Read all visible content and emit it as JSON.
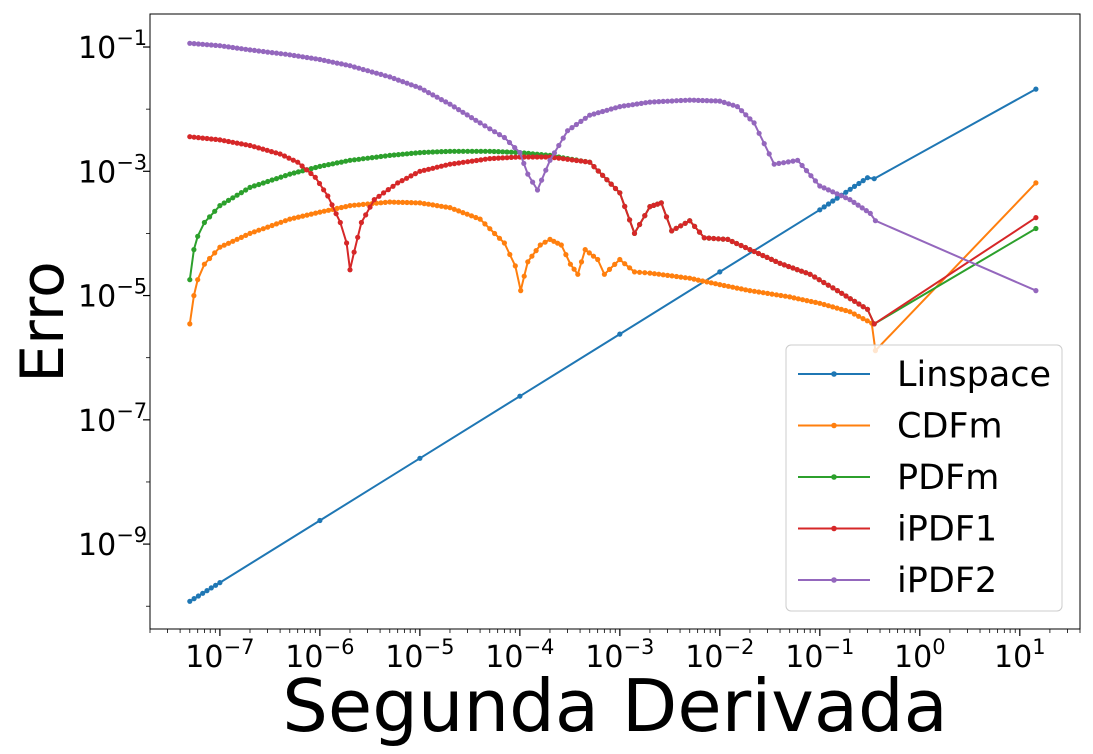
{
  "chart_data": {
    "type": "line",
    "xlabel": "Segunda Derivada",
    "ylabel": "Erro",
    "xscale": "log",
    "yscale": "log",
    "xlim": [
      2e-08,
      40
    ],
    "ylim": [
      4.3e-11,
      0.34
    ],
    "x_major_ticks": [
      1e-07,
      1e-06,
      1e-05,
      0.0001,
      0.001,
      0.01,
      0.1,
      1,
      10
    ],
    "x_tick_labels": [
      {
        "base": "10",
        "exp": "−7"
      },
      {
        "base": "10",
        "exp": "−6"
      },
      {
        "base": "10",
        "exp": "−5"
      },
      {
        "base": "10",
        "exp": "−4"
      },
      {
        "base": "10",
        "exp": "−3"
      },
      {
        "base": "10",
        "exp": "−2"
      },
      {
        "base": "10",
        "exp": "−1"
      },
      {
        "base": "10",
        "exp": "0"
      },
      {
        "base": "10",
        "exp": "1"
      }
    ],
    "y_major_ticks": [
      1e-09,
      1e-07,
      1e-05,
      0.001,
      0.1
    ],
    "y_tick_labels": [
      {
        "base": "10",
        "exp": "−9"
      },
      {
        "base": "10",
        "exp": "−7"
      },
      {
        "base": "10",
        "exp": "−5"
      },
      {
        "base": "10",
        "exp": "−3"
      },
      {
        "base": "10",
        "exp": "−1"
      }
    ],
    "grid": false,
    "legend_position": "lower-right",
    "series": [
      {
        "name": "Linspace",
        "color": "#1f77b4",
        "points": [
          [
            5e-08,
            1.2e-10
          ],
          [
            1e-07,
            2.4e-10
          ],
          [
            1e-06,
            2.4e-09
          ],
          [
            1e-05,
            2.4e-08
          ],
          [
            0.0001,
            2.4e-07
          ],
          [
            0.001,
            2.4e-06
          ],
          [
            0.01,
            2.4e-05
          ],
          [
            0.1,
            0.00024
          ],
          [
            0.3,
            0.00079
          ],
          [
            0.35,
            0.00076
          ],
          [
            14.5,
            0.021
          ]
        ]
      },
      {
        "name": "CDFm",
        "color": "#ff7f0e",
        "points": [
          [
            5e-08,
            3.5e-06
          ],
          [
            5.5e-08,
            1e-05
          ],
          [
            6e-08,
            1.8e-05
          ],
          [
            7e-08,
            3.2e-05
          ],
          [
            1e-07,
            6e-05
          ],
          [
            2e-07,
            0.0001
          ],
          [
            5e-07,
            0.00017
          ],
          [
            1e-06,
            0.00022
          ],
          [
            2e-06,
            0.00028
          ],
          [
            5e-06,
            0.00032
          ],
          [
            1e-05,
            0.00031
          ],
          [
            2e-05,
            0.00026
          ],
          [
            4e-05,
            0.00017
          ],
          [
            7e-05,
            7e-05
          ],
          [
            9e-05,
            3e-05
          ],
          [
            0.000102,
            1.2e-05
          ],
          [
            0.00012,
            3.5e-05
          ],
          [
            0.00016,
            6.5e-05
          ],
          [
            0.0002,
            8e-05
          ],
          [
            0.00026,
            6.5e-05
          ],
          [
            0.00032,
            3.2e-05
          ],
          [
            0.00038,
            2.2e-05
          ],
          [
            0.00045,
            5.5e-05
          ],
          [
            0.0006,
            3.8e-05
          ],
          [
            0.0007,
            2.2e-05
          ],
          [
            0.001,
            3.8e-05
          ],
          [
            0.0014,
            2.4e-05
          ],
          [
            0.002,
            2.3e-05
          ],
          [
            0.005,
            1.9e-05
          ],
          [
            0.01,
            1.5e-05
          ],
          [
            0.02,
            1.2e-05
          ],
          [
            0.05,
            9.5e-06
          ],
          [
            0.1,
            7.5e-06
          ],
          [
            0.2,
            5.5e-06
          ],
          [
            0.33,
            3.6e-06
          ],
          [
            0.36,
            1.3e-06
          ],
          [
            14.5,
            0.00065
          ]
        ]
      },
      {
        "name": "PDFm",
        "color": "#2ca02c",
        "points": [
          [
            5e-08,
            1.8e-05
          ],
          [
            5.5e-08,
            5.5e-05
          ],
          [
            6e-08,
            9e-05
          ],
          [
            7e-08,
            0.00015
          ],
          [
            1e-07,
            0.00028
          ],
          [
            2e-07,
            0.00055
          ],
          [
            5e-07,
            0.0009
          ],
          [
            1e-06,
            0.0012
          ],
          [
            2e-06,
            0.0015
          ],
          [
            5e-06,
            0.0018
          ],
          [
            1e-05,
            0.002
          ],
          [
            2e-05,
            0.0021
          ],
          [
            5e-05,
            0.0021
          ],
          [
            0.0001,
            0.002
          ],
          [
            0.0002,
            0.0018
          ],
          [
            0.0003,
            0.0016
          ],
          [
            0.0005,
            0.0014
          ],
          [
            0.001,
            0.00045
          ],
          [
            0.0014,
            0.0001
          ],
          [
            0.002,
            0.00027
          ],
          [
            0.0026,
            0.00031
          ],
          [
            0.0033,
            0.00011
          ],
          [
            0.005,
            0.00016
          ],
          [
            0.007,
            8.5e-05
          ],
          [
            0.012,
            8e-05
          ],
          [
            0.02,
            5.5e-05
          ],
          [
            0.04,
            3.3e-05
          ],
          [
            0.08,
            2.2e-05
          ],
          [
            0.15,
            1.2e-05
          ],
          [
            0.3,
            6e-06
          ],
          [
            0.35,
            3.5e-06
          ],
          [
            14.5,
            0.00012
          ]
        ]
      },
      {
        "name": "iPDF1",
        "color": "#d62728",
        "points": [
          [
            5e-08,
            0.0036
          ],
          [
            1e-07,
            0.0032
          ],
          [
            2e-07,
            0.0026
          ],
          [
            4e-07,
            0.0019
          ],
          [
            6e-07,
            0.0014
          ],
          [
            9e-07,
            0.0008
          ],
          [
            1.2e-06,
            0.0004
          ],
          [
            1.6e-06,
            0.00015
          ],
          [
            1.85e-06,
            7e-05
          ],
          [
            2e-06,
            2.6e-05
          ],
          [
            2.2e-06,
            5e-05
          ],
          [
            2.6e-06,
            0.00015
          ],
          [
            3.5e-06,
            0.00035
          ],
          [
            6e-06,
            0.00065
          ],
          [
            1e-05,
            0.001
          ],
          [
            2e-05,
            0.0013
          ],
          [
            5e-05,
            0.0016
          ],
          [
            0.0001,
            0.0017
          ],
          [
            0.0002,
            0.0017
          ],
          [
            0.0005,
            0.0014
          ],
          [
            0.001,
            0.00045
          ],
          [
            0.0014,
            0.0001
          ],
          [
            0.002,
            0.00027
          ],
          [
            0.0026,
            0.00031
          ],
          [
            0.0033,
            0.00011
          ],
          [
            0.005,
            0.00016
          ],
          [
            0.007,
            8.5e-05
          ],
          [
            0.012,
            8e-05
          ],
          [
            0.02,
            5.5e-05
          ],
          [
            0.04,
            3.3e-05
          ],
          [
            0.08,
            2.2e-05
          ],
          [
            0.15,
            1.2e-05
          ],
          [
            0.3,
            6e-06
          ],
          [
            0.35,
            3.5e-06
          ],
          [
            14.5,
            0.00018
          ]
        ]
      },
      {
        "name": "iPDF2",
        "color": "#9467bd",
        "points": [
          [
            5e-08,
            0.115
          ],
          [
            1e-07,
            0.105
          ],
          [
            2e-07,
            0.09
          ],
          [
            5e-07,
            0.075
          ],
          [
            1e-06,
            0.063
          ],
          [
            2e-06,
            0.05
          ],
          [
            5e-06,
            0.033
          ],
          [
            1e-05,
            0.022
          ],
          [
            2e-05,
            0.012
          ],
          [
            4e-05,
            0.006
          ],
          [
            7e-05,
            0.0035
          ],
          [
            0.0001,
            0.002
          ],
          [
            0.00012,
            0.0009
          ],
          [
            0.00015,
            0.0005
          ],
          [
            0.0002,
            0.0015
          ],
          [
            0.0003,
            0.0045
          ],
          [
            0.0005,
            0.008
          ],
          [
            0.001,
            0.011
          ],
          [
            0.002,
            0.013
          ],
          [
            0.005,
            0.014
          ],
          [
            0.01,
            0.0135
          ],
          [
            0.015,
            0.011
          ],
          [
            0.022,
            0.006
          ],
          [
            0.035,
            0.0013
          ],
          [
            0.06,
            0.0015
          ],
          [
            0.1,
            0.00058
          ],
          [
            0.2,
            0.00035
          ],
          [
            0.32,
            0.00021
          ],
          [
            0.36,
            0.00016
          ],
          [
            14.5,
            1.2e-05
          ]
        ]
      }
    ]
  }
}
